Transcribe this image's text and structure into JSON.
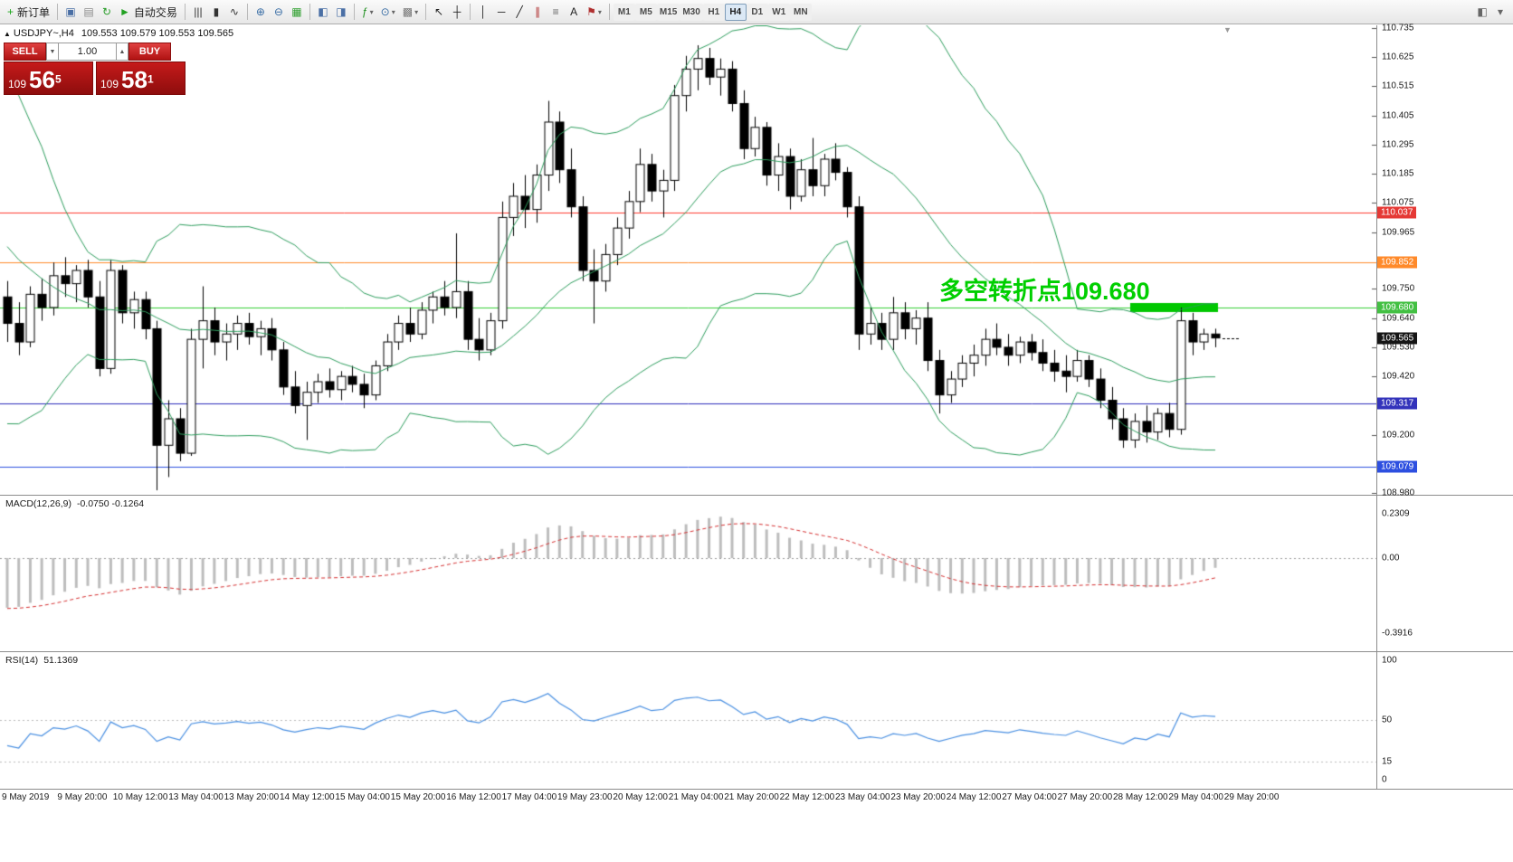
{
  "toolbar": {
    "groups": [
      {
        "items": [
          {
            "name": "new-order-button",
            "icon": "new-order-icon",
            "char": "+",
            "color": "#18a518",
            "label": "新订单"
          }
        ]
      },
      {
        "items": [
          {
            "name": "charts-window-button",
            "icon": "chart-window-icon",
            "char": "▣",
            "color": "#4a6fa5"
          },
          {
            "name": "profiles-button",
            "icon": "profiles-icon",
            "char": "▤",
            "color": "#8a8a8a"
          },
          {
            "name": "refresh-button",
            "icon": "refresh-icon",
            "char": "↻",
            "color": "#2a9d2a"
          },
          {
            "name": "autotrading-button",
            "icon": "autotrading-play-icon",
            "char": "►",
            "color": "#21a121",
            "label": "自动交易"
          }
        ]
      },
      {
        "items": [
          {
            "name": "chart-bars-button",
            "icon": "ohlc-bars-icon",
            "char": "|||",
            "color": "#333333"
          },
          {
            "name": "chart-candles-button",
            "icon": "candlestick-icon",
            "char": "▮",
            "color": "#333333"
          },
          {
            "name": "chart-line-button",
            "icon": "line-chart-icon",
            "char": "∿",
            "color": "#333333"
          }
        ]
      },
      {
        "items": [
          {
            "name": "zoom-in-button",
            "icon": "zoom-in-icon",
            "char": "⊕",
            "color": "#3a6ea5"
          },
          {
            "name": "zoom-out-button",
            "icon": "zoom-out-icon",
            "char": "⊖",
            "color": "#3a6ea5"
          },
          {
            "name": "grid-button",
            "icon": "grid-icon",
            "char": "▦",
            "color": "#2a9d2a"
          }
        ]
      },
      {
        "items": [
          {
            "name": "tile-windows-button",
            "icon": "tile-windows-icon",
            "char": "◧",
            "color": "#4a6fa5"
          },
          {
            "name": "cascade-windows-button",
            "icon": "cascade-windows-icon",
            "char": "◨",
            "color": "#4a6fa5"
          }
        ]
      },
      {
        "items": [
          {
            "name": "indicators-button",
            "icon": "indicators-icon",
            "char": "ƒ",
            "color": "#1f8f1f",
            "dropdown": true
          },
          {
            "name": "objects-button",
            "icon": "objects-icon",
            "char": "⊙",
            "color": "#3a6ea5",
            "dropdown": true
          },
          {
            "name": "templates-button",
            "icon": "templates-icon",
            "char": "▩",
            "color": "#777777",
            "dropdown": true
          }
        ]
      },
      {
        "items": [
          {
            "name": "cursor-button",
            "icon": "cursor-icon",
            "char": "↖",
            "color": "#222222"
          },
          {
            "name": "crosshair-button",
            "icon": "crosshair-icon",
            "char": "┼",
            "color": "#222222"
          }
        ]
      },
      {
        "items": [
          {
            "name": "vertical-line-button",
            "icon": "vertical-line-icon",
            "char": "│",
            "color": "#222222"
          },
          {
            "name": "horizontal-line-button",
            "icon": "horizontal-line-icon",
            "char": "─",
            "color": "#222222"
          },
          {
            "name": "trendline-button",
            "icon": "trendline-icon",
            "char": "╱",
            "color": "#222222"
          },
          {
            "name": "channel-button",
            "icon": "channel-icon",
            "char": "∥",
            "color": "#b03030"
          },
          {
            "name": "fibonacci-button",
            "icon": "fibonacci-icon",
            "char": "≡",
            "color": "#666666"
          },
          {
            "name": "text-button",
            "icon": "text-icon",
            "char": "A",
            "color": "#222222"
          },
          {
            "name": "arrows-button",
            "icon": "arrow-objects-icon",
            "char": "⚑",
            "color": "#b03030",
            "dropdown": true
          }
        ]
      }
    ],
    "timeframes": {
      "list": [
        "M1",
        "M5",
        "M15",
        "M30",
        "H1",
        "H4",
        "D1",
        "W1",
        "MN"
      ],
      "active": "H4"
    },
    "right_items": [
      {
        "name": "chart-shift-button",
        "icon": "chart-shift-icon",
        "char": "◧",
        "color": "#666666"
      },
      {
        "name": "more-tools-button",
        "icon": "chevron-down-icon",
        "char": "▾",
        "color": "#666666"
      }
    ]
  },
  "symbol_header": {
    "arrow": "▲",
    "title": "USDJPY~,H4",
    "quotes": "109.553 109.579 109.553 109.565"
  },
  "trade_panel": {
    "sell_label": "SELL",
    "buy_label": "BUY",
    "volume": "1.00",
    "volume_down_char": "▼",
    "volume_up_char": "▲",
    "sell_price": {
      "prefix": "109",
      "big": "56",
      "sup": "5"
    },
    "buy_price": {
      "prefix": "109",
      "big": "58",
      "sup": "1"
    }
  },
  "annotation": {
    "text": "多空转折点109.680",
    "color": "#00cf00"
  },
  "chart_data": {
    "type": "candlestick",
    "symbol": "USDJPY~",
    "timeframe": "H4",
    "y_axis": {
      "max": 110.735,
      "min": 108.98,
      "plain_ticks": [
        110.735,
        110.625,
        110.515,
        110.405,
        110.295,
        110.185,
        110.075,
        109.965,
        109.75,
        109.64,
        109.53,
        109.42,
        109.2,
        108.98
      ]
    },
    "price_label_boxes": [
      {
        "text": "110.037",
        "price": 110.037,
        "color": "#e53935"
      },
      {
        "text": "109.852",
        "price": 109.852,
        "color": "#ff8a2a"
      },
      {
        "text": "109.680",
        "price": 109.68,
        "color": "#43c043"
      },
      {
        "text": "109.565",
        "price": 109.565,
        "color": "#151515"
      },
      {
        "text": "109.317",
        "price": 109.317,
        "color": "#3333bb"
      },
      {
        "text": "109.079",
        "price": 109.079,
        "color": "#2d4fe0"
      }
    ],
    "hlines": [
      {
        "price": 110.037,
        "color": "#ff3b30"
      },
      {
        "price": 109.852,
        "color": "#ff8a2a"
      },
      {
        "price": 109.68,
        "color": "#35d035"
      },
      {
        "price": 109.317,
        "color": "#2d2dbb"
      },
      {
        "price": 109.079,
        "color": "#2d4fe0"
      }
    ],
    "highlight_bar": {
      "price_top": 109.697,
      "price_bottom": 109.663,
      "from_candle": 98,
      "to_candle": 106,
      "color": "#00c800"
    },
    "current_price": 109.565,
    "overlays": {
      "bollinger": {
        "period": 20,
        "deviation": 2,
        "color": "#2e9e5e"
      }
    },
    "macd": {
      "name": "MACD(12,26,9)",
      "values": "-0.0750 -0.1264",
      "params": [
        12,
        26,
        9
      ],
      "axis_ticks": [
        "0.2309",
        "0.00",
        "-0.3916"
      ],
      "histogram_color": "#bdbdbd",
      "signal_color": "#d63031"
    },
    "rsi": {
      "name": "RSI(14)",
      "value": "51.1369",
      "period": 14,
      "axis_ticks": [
        "100",
        "50",
        "15",
        "0"
      ],
      "line_color": "#4a90e2"
    },
    "x_labels": [
      "9 May 2019",
      "9 May 20:00",
      "10 May 12:00",
      "13 May 04:00",
      "13 May 20:00",
      "14 May 12:00",
      "15 May 04:00",
      "15 May 20:00",
      "16 May 12:00",
      "17 May 04:00",
      "19 May 23:00",
      "20 May 12:00",
      "21 May 04:00",
      "21 May 20:00",
      "22 May 12:00",
      "23 May 04:00",
      "23 May 20:00",
      "24 May 12:00",
      "27 May 04:00",
      "27 May 20:00",
      "28 May 12:00",
      "29 May 04:00",
      "29 May 20:00"
    ],
    "prehistory_closes": [
      110.92,
      110.96,
      110.88,
      110.9,
      110.84,
      110.86,
      110.78,
      110.82,
      110.74,
      110.78,
      110.7,
      110.74,
      110.66,
      110.7,
      110.62,
      110.66,
      110.58,
      110.62,
      110.54,
      110.58,
      110.5,
      110.54,
      110.46,
      110.38,
      110.42,
      110.3,
      110.18,
      110.06,
      109.94,
      109.82,
      109.74,
      109.66,
      109.72,
      109.62,
      109.68,
      109.58,
      109.64,
      109.56,
      109.62,
      109.66
    ],
    "candles": [
      [
        109.72,
        109.78,
        109.55,
        109.62
      ],
      [
        109.62,
        109.7,
        109.5,
        109.55
      ],
      [
        109.55,
        109.76,
        109.53,
        109.73
      ],
      [
        109.73,
        109.79,
        109.63,
        109.68
      ],
      [
        109.68,
        109.85,
        109.65,
        109.8
      ],
      [
        109.8,
        109.87,
        109.72,
        109.77
      ],
      [
        109.77,
        109.84,
        109.7,
        109.82
      ],
      [
        109.82,
        109.86,
        109.68,
        109.72
      ],
      [
        109.72,
        109.78,
        109.42,
        109.45
      ],
      [
        109.45,
        109.86,
        109.43,
        109.82
      ],
      [
        109.82,
        109.84,
        109.62,
        109.66
      ],
      [
        109.66,
        109.74,
        109.6,
        109.71
      ],
      [
        109.71,
        109.74,
        109.56,
        109.6
      ],
      [
        109.6,
        109.63,
        108.99,
        109.16
      ],
      [
        109.16,
        109.33,
        109.04,
        109.26
      ],
      [
        109.26,
        109.3,
        109.1,
        109.13
      ],
      [
        109.13,
        109.6,
        109.12,
        109.56
      ],
      [
        109.56,
        109.76,
        109.45,
        109.63
      ],
      [
        109.63,
        109.68,
        109.5,
        109.55
      ],
      [
        109.55,
        109.62,
        109.48,
        109.58
      ],
      [
        109.58,
        109.65,
        109.52,
        109.62
      ],
      [
        109.62,
        109.66,
        109.54,
        109.57
      ],
      [
        109.57,
        109.63,
        109.5,
        109.6
      ],
      [
        109.6,
        109.64,
        109.48,
        109.52
      ],
      [
        109.52,
        109.55,
        109.35,
        109.38
      ],
      [
        109.38,
        109.44,
        109.28,
        109.31
      ],
      [
        109.31,
        109.4,
        109.18,
        109.36
      ],
      [
        109.36,
        109.43,
        109.32,
        109.4
      ],
      [
        109.4,
        109.45,
        109.34,
        109.37
      ],
      [
        109.37,
        109.44,
        109.33,
        109.42
      ],
      [
        109.42,
        109.46,
        109.36,
        109.39
      ],
      [
        109.39,
        109.43,
        109.3,
        109.35
      ],
      [
        109.35,
        109.48,
        109.33,
        109.46
      ],
      [
        109.46,
        109.58,
        109.44,
        109.55
      ],
      [
        109.55,
        109.65,
        109.52,
        109.62
      ],
      [
        109.62,
        109.68,
        109.55,
        109.58
      ],
      [
        109.58,
        109.7,
        109.56,
        109.67
      ],
      [
        109.67,
        109.74,
        109.62,
        109.72
      ],
      [
        109.72,
        109.78,
        109.65,
        109.68
      ],
      [
        109.68,
        109.96,
        109.64,
        109.74
      ],
      [
        109.74,
        109.78,
        109.52,
        109.56
      ],
      [
        109.56,
        109.64,
        109.48,
        109.52
      ],
      [
        109.52,
        109.66,
        109.5,
        109.63
      ],
      [
        109.63,
        110.08,
        109.6,
        110.02
      ],
      [
        110.02,
        110.15,
        109.95,
        110.1
      ],
      [
        110.1,
        110.18,
        109.98,
        110.05
      ],
      [
        110.05,
        110.22,
        110.0,
        110.18
      ],
      [
        110.18,
        110.46,
        110.12,
        110.38
      ],
      [
        110.38,
        110.42,
        110.15,
        110.2
      ],
      [
        110.2,
        110.28,
        110.02,
        110.06
      ],
      [
        110.06,
        110.1,
        109.78,
        109.82
      ],
      [
        109.82,
        109.9,
        109.62,
        109.78
      ],
      [
        109.78,
        109.92,
        109.74,
        109.88
      ],
      [
        109.88,
        110.02,
        109.84,
        109.98
      ],
      [
        109.98,
        110.12,
        109.94,
        110.08
      ],
      [
        110.08,
        110.28,
        110.04,
        110.22
      ],
      [
        110.22,
        110.26,
        110.08,
        110.12
      ],
      [
        110.12,
        110.2,
        110.02,
        110.16
      ],
      [
        110.16,
        110.52,
        110.12,
        110.48
      ],
      [
        110.48,
        110.63,
        110.42,
        110.58
      ],
      [
        110.58,
        110.67,
        110.5,
        110.62
      ],
      [
        110.62,
        110.66,
        110.52,
        110.55
      ],
      [
        110.55,
        110.62,
        110.48,
        110.58
      ],
      [
        110.58,
        110.61,
        110.42,
        110.45
      ],
      [
        110.45,
        110.5,
        110.24,
        110.28
      ],
      [
        110.28,
        110.4,
        110.25,
        110.36
      ],
      [
        110.36,
        110.38,
        110.14,
        110.18
      ],
      [
        110.18,
        110.3,
        110.12,
        110.25
      ],
      [
        110.25,
        110.28,
        110.05,
        110.1
      ],
      [
        110.1,
        110.24,
        110.08,
        110.2
      ],
      [
        110.2,
        110.32,
        110.1,
        110.14
      ],
      [
        110.14,
        110.26,
        110.1,
        110.24
      ],
      [
        110.24,
        110.3,
        110.16,
        110.19
      ],
      [
        110.19,
        110.21,
        110.02,
        110.06
      ],
      [
        110.06,
        110.1,
        109.52,
        109.58
      ],
      [
        109.58,
        109.68,
        109.54,
        109.62
      ],
      [
        109.62,
        109.66,
        109.52,
        109.56
      ],
      [
        109.56,
        109.72,
        109.52,
        109.66
      ],
      [
        109.66,
        109.7,
        109.56,
        109.6
      ],
      [
        109.6,
        109.67,
        109.54,
        109.64
      ],
      [
        109.64,
        109.7,
        109.44,
        109.48
      ],
      [
        109.48,
        109.52,
        109.28,
        109.35
      ],
      [
        109.35,
        109.44,
        109.32,
        109.41
      ],
      [
        109.41,
        109.5,
        109.38,
        109.47
      ],
      [
        109.47,
        109.54,
        109.42,
        109.5
      ],
      [
        109.5,
        109.6,
        109.46,
        109.56
      ],
      [
        109.56,
        109.62,
        109.5,
        109.53
      ],
      [
        109.53,
        109.58,
        109.46,
        109.5
      ],
      [
        109.5,
        109.57,
        109.47,
        109.55
      ],
      [
        109.55,
        109.58,
        109.48,
        109.51
      ],
      [
        109.51,
        109.56,
        109.44,
        109.47
      ],
      [
        109.47,
        109.52,
        109.4,
        109.44
      ],
      [
        109.44,
        109.5,
        109.36,
        109.42
      ],
      [
        109.42,
        109.52,
        109.4,
        109.48
      ],
      [
        109.48,
        109.5,
        109.38,
        109.41
      ],
      [
        109.41,
        109.45,
        109.3,
        109.33
      ],
      [
        109.33,
        109.38,
        109.22,
        109.26
      ],
      [
        109.26,
        109.3,
        109.15,
        109.18
      ],
      [
        109.18,
        109.28,
        109.15,
        109.25
      ],
      [
        109.25,
        109.31,
        109.17,
        109.21
      ],
      [
        109.21,
        109.3,
        109.18,
        109.28
      ],
      [
        109.28,
        109.32,
        109.19,
        109.22
      ],
      [
        109.22,
        109.68,
        109.2,
        109.63
      ],
      [
        109.63,
        109.66,
        109.5,
        109.55
      ],
      [
        109.55,
        109.6,
        109.52,
        109.58
      ],
      [
        109.58,
        109.6,
        109.53,
        109.565
      ]
    ]
  }
}
